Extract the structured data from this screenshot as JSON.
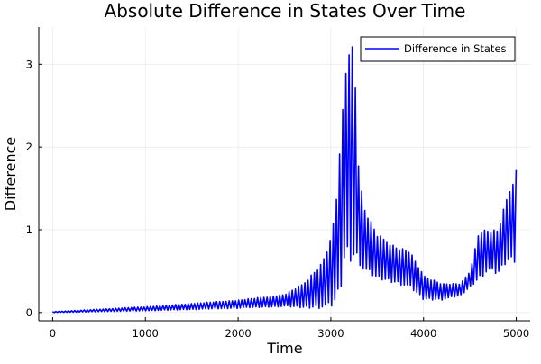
{
  "chart_data": {
    "type": "line",
    "title": "Absolute Difference in States Over Time",
    "xlabel": "Time",
    "ylabel": "Difference",
    "xlim": [
      -150,
      5150
    ],
    "ylim": [
      -0.1,
      3.45
    ],
    "xticks": [
      0,
      1000,
      2000,
      3000,
      4000,
      5000
    ],
    "yticks": [
      0,
      1,
      2,
      3
    ],
    "grid": true,
    "legend_position": "top-right",
    "series": [
      {
        "name": "Difference in States",
        "color": "#0000ff",
        "style": "rapid oscillation between envelopes",
        "envelope": {
          "x": [
            0,
            1000,
            2000,
            2500,
            2700,
            2900,
            3000,
            3050,
            3100,
            3150,
            3200,
            3250,
            3300,
            3350,
            3500,
            3700,
            3850,
            4000,
            4200,
            4400,
            4500,
            4600,
            4700,
            4800,
            4900,
            5000
          ],
          "upper": [
            0.01,
            0.07,
            0.15,
            0.22,
            0.35,
            0.6,
            0.9,
            1.3,
            2.0,
            2.9,
            3.35,
            3.2,
            1.8,
            1.3,
            0.95,
            0.8,
            0.75,
            0.45,
            0.35,
            0.35,
            0.5,
            1.0,
            1.0,
            1.0,
            1.4,
            1.75
          ],
          "lower": [
            0.0,
            0.02,
            0.05,
            0.07,
            0.05,
            0.05,
            0.05,
            0.1,
            0.2,
            0.6,
            0.6,
            0.6,
            0.6,
            0.5,
            0.4,
            0.35,
            0.3,
            0.15,
            0.15,
            0.2,
            0.3,
            0.4,
            0.5,
            0.45,
            0.6,
            0.6
          ]
        }
      }
    ]
  }
}
